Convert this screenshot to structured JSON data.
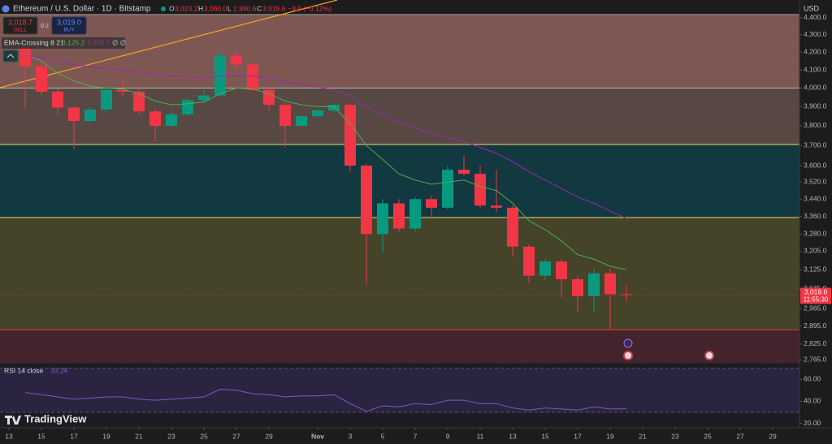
{
  "chart_data": {
    "type": "candlestick",
    "title": "Ethereum / U.S. Dollar · 1D · Bitstamp",
    "currency": "USD",
    "ohlc_legend": [
      {
        "key": "O",
        "label": "3,023.2"
      },
      {
        "key": "H",
        "label": "3,060.0"
      },
      {
        "key": "L",
        "label": "2,990.6"
      },
      {
        "key": "C",
        "label": "3,019.6"
      }
    ],
    "change_label": "−3.6 (−0.12%)",
    "sell": {
      "price": "3,018.7",
      "label": "SELL"
    },
    "spread": "0.2",
    "buy": {
      "price": "3,019.0",
      "label": "BUY"
    },
    "log": true,
    "grid": false,
    "up_color": "#089981",
    "down_color": "#f23645",
    "x": [
      1,
      2,
      3,
      4,
      5,
      6,
      7,
      8,
      9,
      10,
      11,
      12,
      13,
      14,
      15,
      16,
      17,
      18,
      19,
      20,
      21,
      22,
      23,
      24,
      25,
      26,
      27,
      28,
      29,
      30,
      31,
      32,
      33,
      34,
      35,
      36,
      37,
      38
    ],
    "open": [
      4220,
      4120,
      3980,
      3895,
      3825,
      3885,
      3990,
      3980,
      3875,
      3800,
      3860,
      3935,
      3960,
      4180,
      4130,
      3990,
      3910,
      3800,
      3850,
      3880,
      3910,
      3600,
      3280,
      3420,
      3305,
      3440,
      3400,
      3580,
      3560,
      3410,
      3400,
      3225,
      3100,
      3160,
      3085,
      3015,
      3110,
      3023.2
    ],
    "high": [
      4245,
      4150,
      4000,
      3900,
      3900,
      4010,
      4060,
      4000,
      3890,
      3880,
      3950,
      3990,
      4200,
      4200,
      4140,
      4000,
      3920,
      3860,
      3890,
      3920,
      3915,
      3610,
      3440,
      3440,
      3450,
      3455,
      3600,
      3650,
      3600,
      3580,
      3410,
      3235,
      3170,
      3170,
      3100,
      3130,
      3130,
      3060
    ],
    "low": [
      3890,
      3960,
      3850,
      3680,
      3820,
      3870,
      3950,
      3860,
      3720,
      3790,
      3850,
      3920,
      3950,
      4100,
      3980,
      3880,
      3690,
      3795,
      3840,
      3870,
      3570,
      3060,
      3200,
      3290,
      3290,
      3350,
      3390,
      3550,
      3400,
      3380,
      3180,
      3070,
      3080,
      3010,
      2950,
      2950,
      2880,
      2990.6
    ],
    "close": [
      4120,
      3980,
      3895,
      3825,
      3885,
      3990,
      3980,
      3875,
      3800,
      3860,
      3935,
      3960,
      4180,
      4130,
      3990,
      3910,
      3800,
      3850,
      3880,
      3910,
      3600,
      3280,
      3420,
      3305,
      3440,
      3400,
      3580,
      3560,
      3410,
      3400,
      3225,
      3100,
      3160,
      3085,
      3015,
      3110,
      3023,
      3019.6
    ],
    "last_price_label": "3,019.6",
    "countdown": "11:55:30",
    "ema": {
      "name": "EMA-Crossing 8 21",
      "extra": "∅ ∅",
      "lines": [
        {
          "color": "#4caf50",
          "last_label": "3,125.2",
          "values": [
            4190,
            4150,
            4080,
            4040,
            4010,
            4000,
            3995,
            3970,
            3930,
            3910,
            3915,
            3925,
            3970,
            4000,
            3995,
            3970,
            3930,
            3910,
            3900,
            3900,
            3810,
            3700,
            3630,
            3560,
            3530,
            3510,
            3520,
            3530,
            3500,
            3480,
            3420,
            3340,
            3300,
            3250,
            3190,
            3170,
            3140,
            3125.2
          ]
        },
        {
          "color": "#9c27b0",
          "last_label": "3,350.2",
          "values": [
            4180,
            4170,
            4150,
            4130,
            4115,
            4105,
            4100,
            4090,
            4075,
            4065,
            4060,
            4055,
            4065,
            4070,
            4065,
            4055,
            4035,
            4020,
            4005,
            3990,
            3955,
            3900,
            3860,
            3820,
            3790,
            3760,
            3740,
            3720,
            3690,
            3660,
            3620,
            3570,
            3530,
            3490,
            3450,
            3420,
            3385,
            3350.2
          ]
        }
      ]
    },
    "zones": [
      {
        "from": 4000,
        "to": 4420,
        "color": "#7e5752",
        "edge": "#9a9a9a"
      },
      {
        "from": 3705,
        "to": 4000,
        "color": "#574843",
        "edge": "#b8b8b8"
      },
      {
        "from": 3355,
        "to": 3705,
        "color": "#123840",
        "edge": "#e8d878"
      },
      {
        "from": 2880,
        "to": 3355,
        "color": "#45432a",
        "edge": "#e8d878"
      },
      {
        "from": 2754,
        "to": 2880,
        "color": "#43232c",
        "edge": "#d43c4c"
      }
    ],
    "xlim": [
      -0.55,
      48.65
    ],
    "ylim": [
      2754,
      4508
    ],
    "xticks": [
      {
        "value": 0,
        "label": "13"
      },
      {
        "value": 2,
        "label": "15"
      },
      {
        "value": 4,
        "label": "17"
      },
      {
        "value": 6,
        "label": "19"
      },
      {
        "value": 8,
        "label": "21"
      },
      {
        "value": 10,
        "label": "23"
      },
      {
        "value": 12,
        "label": "25"
      },
      {
        "value": 14,
        "label": "27"
      },
      {
        "value": 16,
        "label": "29"
      },
      {
        "value": 19,
        "label": "Nov"
      },
      {
        "value": 21,
        "label": "3"
      },
      {
        "value": 23,
        "label": "5"
      },
      {
        "value": 25,
        "label": "7"
      },
      {
        "value": 27,
        "label": "9"
      },
      {
        "value": 29,
        "label": "11"
      },
      {
        "value": 31,
        "label": "13"
      },
      {
        "value": 33,
        "label": "15"
      },
      {
        "value": 35,
        "label": "17"
      },
      {
        "value": 37,
        "label": "19"
      },
      {
        "value": 39,
        "label": "21"
      },
      {
        "value": 41,
        "label": "23"
      },
      {
        "value": 43,
        "label": "25"
      },
      {
        "value": 45,
        "label": "27"
      },
      {
        "value": 47,
        "label": "29"
      }
    ],
    "yticks": [
      {
        "value": 4400,
        "label": "4,400.0"
      },
      {
        "value": 4300,
        "label": "4,300.0"
      },
      {
        "value": 4200,
        "label": "4,200.0"
      },
      {
        "value": 4100,
        "label": "4,100.0"
      },
      {
        "value": 4000,
        "label": "4,000.0"
      },
      {
        "value": 3900,
        "label": "3,900.0"
      },
      {
        "value": 3800,
        "label": "3,800.0"
      },
      {
        "value": 3700,
        "label": "3,700.0"
      },
      {
        "value": 3600,
        "label": "3,600.0"
      },
      {
        "value": 3520,
        "label": "3,520.0"
      },
      {
        "value": 3440,
        "label": "3,440.0"
      },
      {
        "value": 3360,
        "label": "3,360.0"
      },
      {
        "value": 3280,
        "label": "3,280.0"
      },
      {
        "value": 3205,
        "label": "3,205.0"
      },
      {
        "value": 3125,
        "label": "3,125.0"
      },
      {
        "value": 3045,
        "label": "3,045.0"
      },
      {
        "value": 2965,
        "label": "2,965.0"
      },
      {
        "value": 2895,
        "label": "2,895.0"
      },
      {
        "value": 2825,
        "label": "2,825.0"
      },
      {
        "value": 2765,
        "label": "2,765.0"
      }
    ],
    "rsi": {
      "label": "RSI 14 close",
      "value_label": "33.24",
      "color": "#7e57c2",
      "values": [
        48,
        46,
        44,
        42,
        43,
        44,
        44,
        42,
        41,
        42,
        43,
        44,
        51,
        50,
        47,
        46,
        44,
        45,
        45,
        46,
        38,
        31,
        36,
        35,
        38,
        37,
        41,
        41,
        38,
        38,
        34,
        32,
        34,
        33,
        32,
        35,
        33,
        33.24
      ],
      "ylim": [
        16,
        75
      ],
      "bands": [
        70,
        30
      ],
      "yticks": [
        {
          "value": 60,
          "label": "60.00"
        },
        {
          "value": 40,
          "label": "40.00"
        },
        {
          "value": 20,
          "label": "20.00"
        }
      ]
    },
    "brand": "TradingView"
  }
}
